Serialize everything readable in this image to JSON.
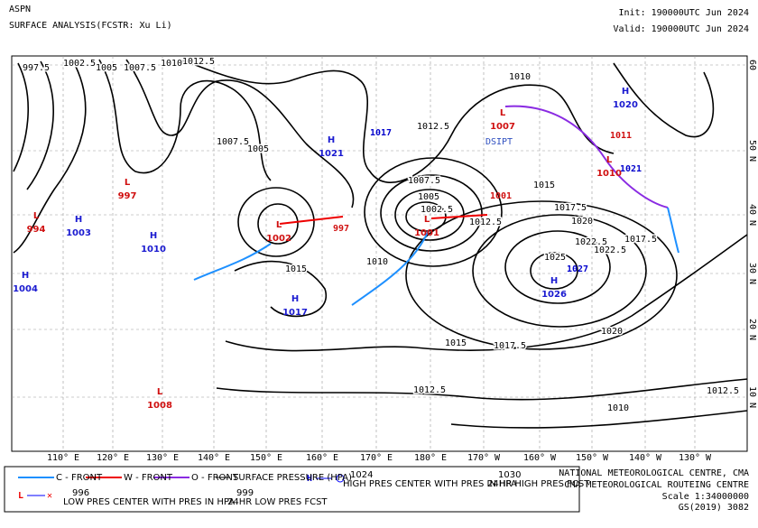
{
  "header": {
    "left": [
      "ASPN",
      "SURFACE ANALYSIS(FCSTR: Xu Li)"
    ],
    "right": [
      "Init: 190000UTC Jun 2024",
      "Valid: 190000UTC Jun 2024"
    ]
  },
  "map": {
    "lon_labels": [
      "110° E",
      "120° E",
      "130° E",
      "140° E",
      "150° E",
      "160° E",
      "170° E",
      "180° E",
      "170° W",
      "160° W",
      "150° W",
      "140° W",
      "130° W"
    ],
    "lat_labels": [
      "60",
      "50 N",
      "40 N",
      "30 N",
      "20 N",
      "10 N"
    ],
    "centers": [
      {
        "type": "H",
        "pressure": "1020"
      },
      {
        "type": "H",
        "pressure": "1021"
      },
      {
        "type": "H",
        "pressure": "1003"
      },
      {
        "type": "H",
        "pressure": "1010"
      },
      {
        "type": "H",
        "pressure": "1004"
      },
      {
        "type": "H",
        "pressure": "1017"
      },
      {
        "type": "H",
        "pressure": "1026"
      },
      {
        "type": "L",
        "pressure": "1007"
      },
      {
        "type": "L",
        "pressure": "1001"
      },
      {
        "type": "L",
        "pressure": "1002"
      },
      {
        "type": "L",
        "pressure": "997"
      },
      {
        "type": "L",
        "pressure": "994"
      },
      {
        "type": "L",
        "pressure": "1010"
      },
      {
        "type": "L",
        "pressure": "1008"
      }
    ],
    "forecasts": [
      "1021",
      "1017",
      "1027",
      "997",
      "1001",
      "1011"
    ],
    "status": "DSIPT",
    "isobar_labels": [
      "997.5",
      "1002.5",
      "1005",
      "1007.5",
      "1010",
      "1012.5",
      "1012.5",
      "1010",
      "1015",
      "1017.5",
      "1020",
      "1022.5",
      "1025",
      "1022.5",
      "1020",
      "1017.5",
      "1015",
      "1012.5",
      "1010",
      "1012.5",
      "1015",
      "1007.5",
      "1005",
      "1002.5",
      "1010",
      "1012.5",
      "1017.5",
      "1007.5",
      "1005"
    ]
  },
  "legend": {
    "cold_front": "C - FRONT",
    "warm_front": "W - FRONT",
    "occluded_front": "O - FRONT",
    "isobar": "SURFACE PRESSURE (HPA)",
    "high_value": "1024",
    "high_text": "HIGH PRES CENTER WITH PRES IN HPA",
    "high_fcst_value": "1030",
    "high_fcst_text": "24HR HIGH PRES FCST",
    "low_value": "996",
    "low_text": "LOW PRES CENTER WITH PRES IN HPA",
    "low_fcst_value": "999",
    "low_fcst_text": "24HR LOW PRES FCST"
  },
  "footer": [
    "NATIONAL METEOROLOGICAL CENTRE, CMA",
    "CMA METEOROLOGICAL ROUTEING CENTRE",
    "Scale 1:34000000",
    "GS(2019) 3082"
  ]
}
